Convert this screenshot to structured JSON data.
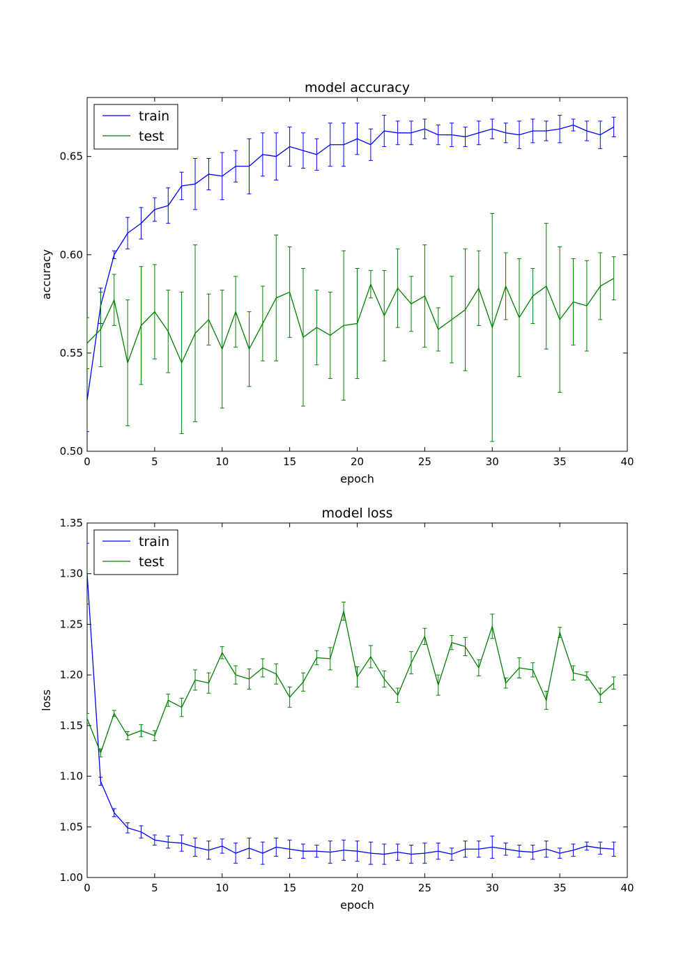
{
  "chart_data": [
    {
      "type": "line",
      "title": "model accuracy",
      "xlabel": "epoch",
      "ylabel": "accuracy",
      "xlim": [
        0,
        40
      ],
      "ylim": [
        0.5,
        0.68
      ],
      "xticks": [
        0,
        5,
        10,
        15,
        20,
        25,
        30,
        35,
        40
      ],
      "yticks": [
        0.5,
        0.55,
        0.6,
        0.65
      ],
      "ytick_labels": [
        "0.50",
        "0.55",
        "0.60",
        "0.65"
      ],
      "legend_position": "top-left",
      "error_bars": true,
      "series": [
        {
          "name": "train",
          "color": "#0000ff",
          "x": [
            0,
            1,
            2,
            3,
            4,
            5,
            6,
            7,
            8,
            9,
            10,
            11,
            12,
            13,
            14,
            15,
            16,
            17,
            18,
            19,
            20,
            21,
            22,
            23,
            24,
            25,
            26,
            27,
            28,
            29,
            30,
            31,
            32,
            33,
            34,
            35,
            36,
            37,
            38,
            39
          ],
          "values": [
            0.526,
            0.574,
            0.6,
            0.611,
            0.616,
            0.623,
            0.625,
            0.635,
            0.636,
            0.641,
            0.64,
            0.645,
            0.645,
            0.651,
            0.65,
            0.655,
            0.653,
            0.651,
            0.656,
            0.656,
            0.659,
            0.656,
            0.663,
            0.662,
            0.662,
            0.664,
            0.661,
            0.661,
            0.66,
            0.662,
            0.664,
            0.662,
            0.661,
            0.663,
            0.663,
            0.664,
            0.666,
            0.663,
            0.661,
            0.665
          ],
          "errors": [
            0.016,
            0.009,
            0.002,
            0.008,
            0.008,
            0.006,
            0.009,
            0.007,
            0.013,
            0.008,
            0.012,
            0.008,
            0.014,
            0.011,
            0.012,
            0.01,
            0.009,
            0.008,
            0.011,
            0.011,
            0.008,
            0.008,
            0.008,
            0.006,
            0.006,
            0.005,
            0.005,
            0.006,
            0.005,
            0.006,
            0.005,
            0.005,
            0.007,
            0.006,
            0.005,
            0.007,
            0.003,
            0.005,
            0.007,
            0.005
          ]
        },
        {
          "name": "test",
          "color": "#008000",
          "x": [
            0,
            1,
            2,
            3,
            4,
            5,
            6,
            7,
            8,
            9,
            10,
            11,
            12,
            13,
            14,
            15,
            16,
            17,
            18,
            19,
            20,
            21,
            22,
            23,
            24,
            25,
            26,
            27,
            28,
            29,
            30,
            31,
            32,
            33,
            34,
            35,
            36,
            37,
            38,
            39
          ],
          "values": [
            0.555,
            0.562,
            0.577,
            0.545,
            0.564,
            0.571,
            0.561,
            0.545,
            0.56,
            0.567,
            0.552,
            0.571,
            0.552,
            0.565,
            0.578,
            0.581,
            0.558,
            0.563,
            0.559,
            0.564,
            0.565,
            0.585,
            0.569,
            0.583,
            0.575,
            0.579,
            0.562,
            0.567,
            0.572,
            0.583,
            0.563,
            0.584,
            0.568,
            0.579,
            0.584,
            0.567,
            0.576,
            0.574,
            0.584,
            0.588
          ],
          "errors": [
            0.013,
            0.019,
            0.013,
            0.032,
            0.03,
            0.024,
            0.021,
            0.036,
            0.045,
            0.013,
            0.03,
            0.018,
            0.019,
            0.019,
            0.032,
            0.023,
            0.035,
            0.019,
            0.022,
            0.038,
            0.028,
            0.007,
            0.023,
            0.02,
            0.014,
            0.026,
            0.011,
            0.022,
            0.031,
            0.019,
            0.058,
            0.017,
            0.03,
            0.014,
            0.032,
            0.037,
            0.022,
            0.023,
            0.017,
            0.011
          ]
        }
      ]
    },
    {
      "type": "line",
      "title": "model loss",
      "xlabel": "epoch",
      "ylabel": "loss",
      "xlim": [
        0,
        40
      ],
      "ylim": [
        1.0,
        1.35
      ],
      "xticks": [
        0,
        5,
        10,
        15,
        20,
        25,
        30,
        35,
        40
      ],
      "yticks": [
        1.0,
        1.05,
        1.1,
        1.15,
        1.2,
        1.25,
        1.3,
        1.35
      ],
      "ytick_labels": [
        "1.00",
        "1.05",
        "1.10",
        "1.15",
        "1.20",
        "1.25",
        "1.30",
        "1.35"
      ],
      "legend_position": "top-left",
      "error_bars": true,
      "series": [
        {
          "name": "train",
          "color": "#0000ff",
          "x": [
            0,
            1,
            2,
            3,
            4,
            5,
            6,
            7,
            8,
            9,
            10,
            11,
            12,
            13,
            14,
            15,
            16,
            17,
            18,
            19,
            20,
            21,
            22,
            23,
            24,
            25,
            26,
            27,
            28,
            29,
            30,
            31,
            32,
            33,
            34,
            35,
            36,
            37,
            38,
            39
          ],
          "values": [
            1.3,
            1.095,
            1.064,
            1.049,
            1.045,
            1.037,
            1.035,
            1.034,
            1.03,
            1.027,
            1.031,
            1.024,
            1.029,
            1.024,
            1.03,
            1.028,
            1.026,
            1.026,
            1.025,
            1.027,
            1.026,
            1.024,
            1.023,
            1.025,
            1.023,
            1.024,
            1.026,
            1.023,
            1.028,
            1.028,
            1.03,
            1.028,
            1.026,
            1.025,
            1.028,
            1.024,
            1.027,
            1.031,
            1.029,
            1.028
          ],
          "errors": [
            0.03,
            0.004,
            0.004,
            0.005,
            0.006,
            0.005,
            0.006,
            0.008,
            0.009,
            0.009,
            0.007,
            0.01,
            0.01,
            0.011,
            0.009,
            0.009,
            0.007,
            0.006,
            0.011,
            0.01,
            0.01,
            0.011,
            0.01,
            0.008,
            0.009,
            0.01,
            0.008,
            0.006,
            0.008,
            0.008,
            0.011,
            0.006,
            0.006,
            0.007,
            0.008,
            0.005,
            0.006,
            0.004,
            0.006,
            0.007
          ]
        },
        {
          "name": "test",
          "color": "#008000",
          "x": [
            0,
            1,
            2,
            3,
            4,
            5,
            6,
            7,
            8,
            9,
            10,
            11,
            12,
            13,
            14,
            15,
            16,
            17,
            18,
            19,
            20,
            21,
            22,
            23,
            24,
            25,
            26,
            27,
            28,
            29,
            30,
            31,
            32,
            33,
            34,
            35,
            36,
            37,
            38,
            39
          ],
          "values": [
            1.157,
            1.123,
            1.162,
            1.14,
            1.145,
            1.14,
            1.175,
            1.168,
            1.195,
            1.192,
            1.222,
            1.2,
            1.196,
            1.207,
            1.201,
            1.178,
            1.193,
            1.217,
            1.216,
            1.263,
            1.198,
            1.218,
            1.196,
            1.18,
            1.212,
            1.238,
            1.19,
            1.232,
            1.228,
            1.207,
            1.248,
            1.192,
            1.207,
            1.205,
            1.175,
            1.242,
            1.202,
            1.199,
            1.18,
            1.192
          ],
          "errors": [
            0.005,
            0.004,
            0.003,
            0.004,
            0.006,
            0.005,
            0.006,
            0.009,
            0.01,
            0.01,
            0.006,
            0.009,
            0.01,
            0.009,
            0.01,
            0.01,
            0.009,
            0.007,
            0.011,
            0.009,
            0.01,
            0.011,
            0.008,
            0.007,
            0.011,
            0.008,
            0.01,
            0.007,
            0.009,
            0.008,
            0.012,
            0.005,
            0.01,
            0.007,
            0.009,
            0.005,
            0.007,
            0.004,
            0.007,
            0.006
          ]
        }
      ]
    }
  ]
}
